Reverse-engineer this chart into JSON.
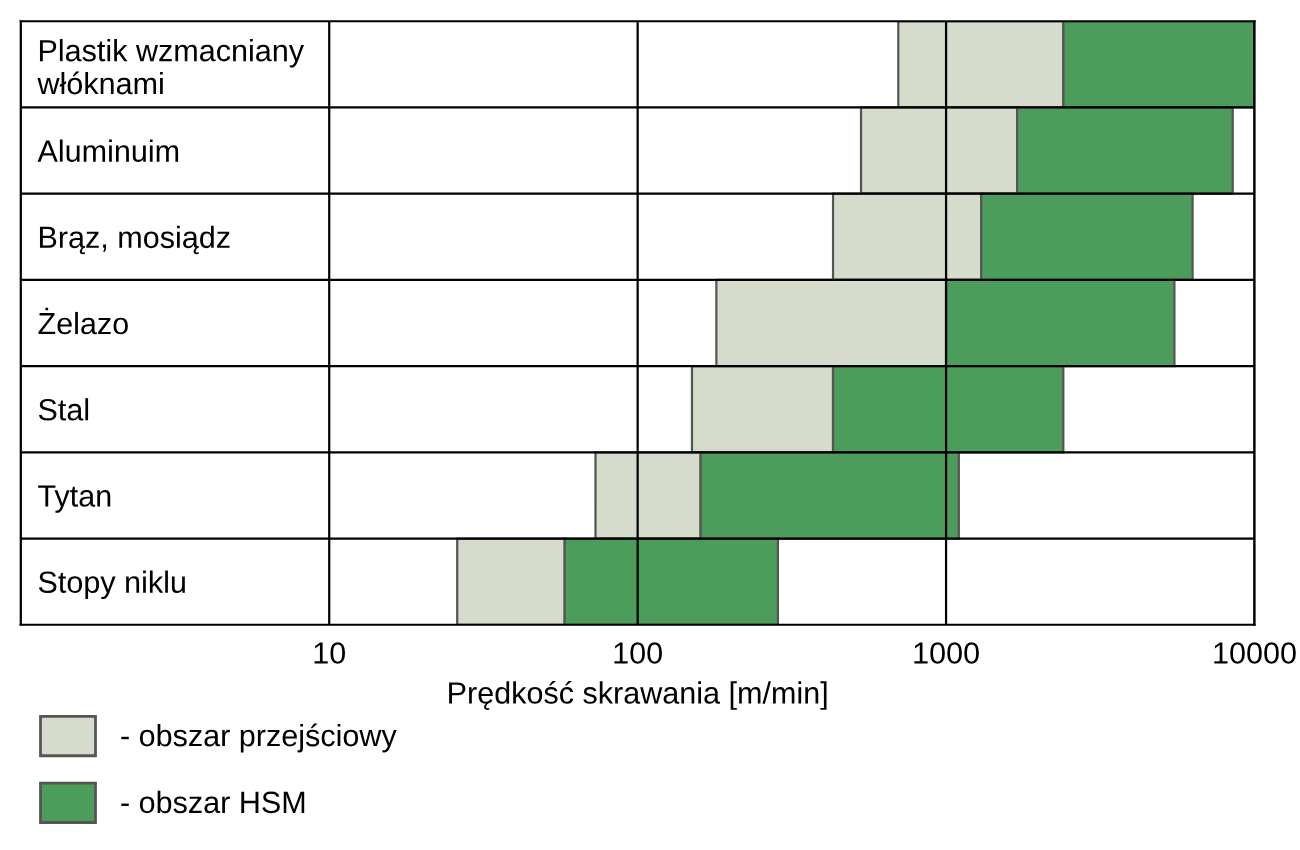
{
  "chart_data": {
    "type": "bar",
    "orientation": "horizontal",
    "log": "x",
    "categories": [
      "Plastik wzmacniany\nwłóknami",
      "Aluminuim",
      "Brąz, mosiądz",
      "Żelazo",
      "Stal",
      "Tytan",
      "Stopy niklu"
    ],
    "series": [
      {
        "name": "- obszar przejściowy",
        "color": "#d5dccb",
        "base": [
          700,
          530,
          430,
          180,
          150,
          73,
          26
        ],
        "values": [
          1700,
          1170,
          870,
          820,
          280,
          87,
          32
        ]
      },
      {
        "name": "- obszar HSM",
        "color": "#4c9d5c",
        "base": [
          2400,
          1700,
          1300,
          1000,
          430,
          160,
          58
        ],
        "values": [
          7600,
          6800,
          5000,
          4500,
          1970,
          940,
          227
        ]
      }
    ],
    "xlim": [
      1,
      10000
    ],
    "xticks": [
      10,
      100,
      1000,
      10000
    ],
    "xlabel": "Prędkość skrawania [m/min]",
    "grid": "x",
    "legend": "bottom left"
  }
}
